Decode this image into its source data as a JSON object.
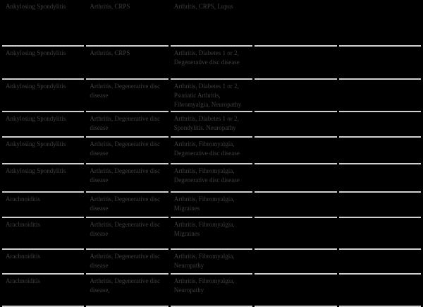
{
  "colors": {
    "background": "#000000",
    "text": "#3f3f3f",
    "row_divider": "#d0d0d0"
  },
  "table": {
    "num_columns": 5,
    "rows": [
      [
        "Ankylosing Spondylitis",
        "Arthritis, CRPS",
        "Arthritis, CRPS, Lupus",
        "",
        ""
      ],
      [
        "Ankylosing Spondylitis",
        "Arthritis, CRPS",
        "Arthritis, Diabetes 1 or 2, Degenerative disc disease",
        "",
        ""
      ],
      [
        "Ankylosing Spondylitis",
        "Arthritis, Degenerative disc disease",
        "Arthritis, Diabetes 1 or 2, Psoriatic Arthritis, Fibromyalgia, Neuropathy",
        "",
        ""
      ],
      [
        "Ankylosing Spondylitis",
        "Arthritis, Degenerative disc disease",
        "Arthritis, Diabetes 1 or 2, Spondylitis. Neuropathy",
        "",
        ""
      ],
      [
        "Ankylosing Spondylitis",
        "Arthritis, Degenerative disc disease",
        "Arthritis, Fibromyalgia, Degenerative disc disease",
        "",
        ""
      ],
      [
        "Ankylosing Spondylitis",
        "Arthritis, Degenerative disc disease",
        "Arthritis, Fibromyalgia, Degenerative disc disease",
        "",
        ""
      ],
      [
        "Arachnoiditis",
        "Arthritis, Degenerative disc disease",
        "Arthritis, Fibromyalgia, Migraines",
        "",
        ""
      ],
      [
        "Arachnoiditis",
        "Arthritis, Degenerative disc disease",
        "Arthritis, Fibromyalgia, Migraines",
        "",
        ""
      ],
      [
        "Arachnoiditis",
        "Arthritis, Degenerative disc disease",
        "Arthritis, Fibromyalgia, Neuropathy",
        "",
        ""
      ],
      [
        "Arachnoiditis",
        "Arthritis, Degenerative disc disease,",
        "Arthritis, Fibromyalgia, Neuropathy",
        "",
        ""
      ]
    ]
  }
}
